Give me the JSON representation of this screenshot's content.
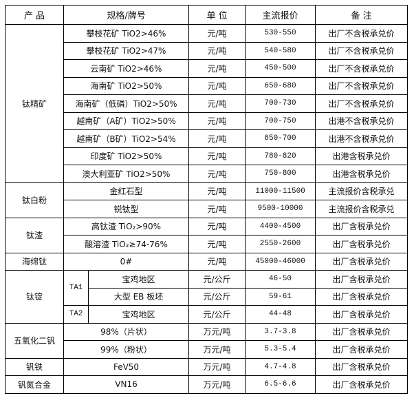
{
  "headers": [
    "产 品",
    "规格/牌号",
    "单 位",
    "主流报价",
    "备 注"
  ],
  "groups": [
    {
      "product": "钛精矿",
      "rows": [
        {
          "spec": "攀枝花矿 TiO2>46%",
          "unit": "元/吨",
          "price": "530-550",
          "note": "出厂不含税承兑价"
        },
        {
          "spec": "攀枝花矿 TiO2>47%",
          "unit": "元/吨",
          "price": "540-580",
          "note": "出厂不含税承兑价"
        },
        {
          "spec": "云南矿 TiO2>46%",
          "unit": "元/吨",
          "price": "450-500",
          "note": "出厂不含税承兑价"
        },
        {
          "spec": "海南矿 TiO2>50%",
          "unit": "元/吨",
          "price": "650-680",
          "note": "出厂不含税承兑价"
        },
        {
          "spec": "海南矿（低磷）TiO2>50%",
          "unit": "元/吨",
          "price": "700-730",
          "note": "出厂不含税承兑价"
        },
        {
          "spec": "越南矿（A矿）TiO2>50%",
          "unit": "元/吨",
          "price": "700-750",
          "note": "出港不含税承兑价"
        },
        {
          "spec": "越南矿（B矿）TiO2>54%",
          "unit": "元/吨",
          "price": "650-700",
          "note": "出港不含税承兑价"
        },
        {
          "spec": "印度矿 TiO2>50%",
          "unit": "元/吨",
          "price": "780-820",
          "note": "出港含税承兑价"
        },
        {
          "spec": "澳大利亚矿 TiO2>50%",
          "unit": "元/吨",
          "price": "750-800",
          "note": "出港含税承兑价"
        }
      ]
    },
    {
      "product": "钛白粉",
      "rows": [
        {
          "spec": "金红石型",
          "unit": "元/吨",
          "price": "11000-11500",
          "note": "主流报价含税承兑"
        },
        {
          "spec": "锐钛型",
          "unit": "元/吨",
          "price": "9500-10000",
          "note": "主流报价含税承兑"
        }
      ]
    },
    {
      "product": "钛渣",
      "rows": [
        {
          "spec": "高钛渣 TiO₂>90%",
          "unit": "元/吨",
          "price": "4400-4500",
          "note": "出厂含税承兑价"
        },
        {
          "spec": "酸溶渣 TiO₂≥74-76%",
          "unit": "元/吨",
          "price": "2550-2600",
          "note": "出厂含税承兑价"
        }
      ]
    },
    {
      "product": "海绵钛",
      "rows": [
        {
          "spec": "0#",
          "unit": "元/吨",
          "price": "45000-46000",
          "note": "出厂含税承兑价"
        }
      ]
    },
    {
      "product": "钛锭",
      "rows": [
        {
          "grade": "TA1",
          "spec": "宝鸡地区",
          "unit": "元/公斤",
          "price": "46-50",
          "note": "出厂含税承兑价"
        },
        {
          "spec": "大型 EB 板坯",
          "unit": "元/公斤",
          "price": "59-61",
          "note": "出厂含税承兑价"
        },
        {
          "grade": "TA2",
          "spec": "宝鸡地区",
          "unit": "元/公斤",
          "price": "44-48",
          "note": "出厂含税承兑价"
        }
      ]
    },
    {
      "product": "五氧化二钒",
      "rows": [
        {
          "spec": "98%（片状）",
          "unit": "万元/吨",
          "price": "3.7-3.8",
          "note": "出厂含税承兑价"
        },
        {
          "spec": "99%（粉状）",
          "unit": "万元/吨",
          "price": "5.3-5.4",
          "note": "出厂含税承兑价"
        }
      ]
    },
    {
      "product": "钒铁",
      "rows": [
        {
          "spec": "FeV50",
          "unit": "万元/吨",
          "price": "4.7-4.8",
          "note": "出厂含税承兑价"
        }
      ]
    },
    {
      "product": "钒氮合金",
      "rows": [
        {
          "spec": "VN16",
          "unit": "万元/吨",
          "price": "6.5-6.6",
          "note": "出厂含税承兑价"
        }
      ]
    }
  ]
}
